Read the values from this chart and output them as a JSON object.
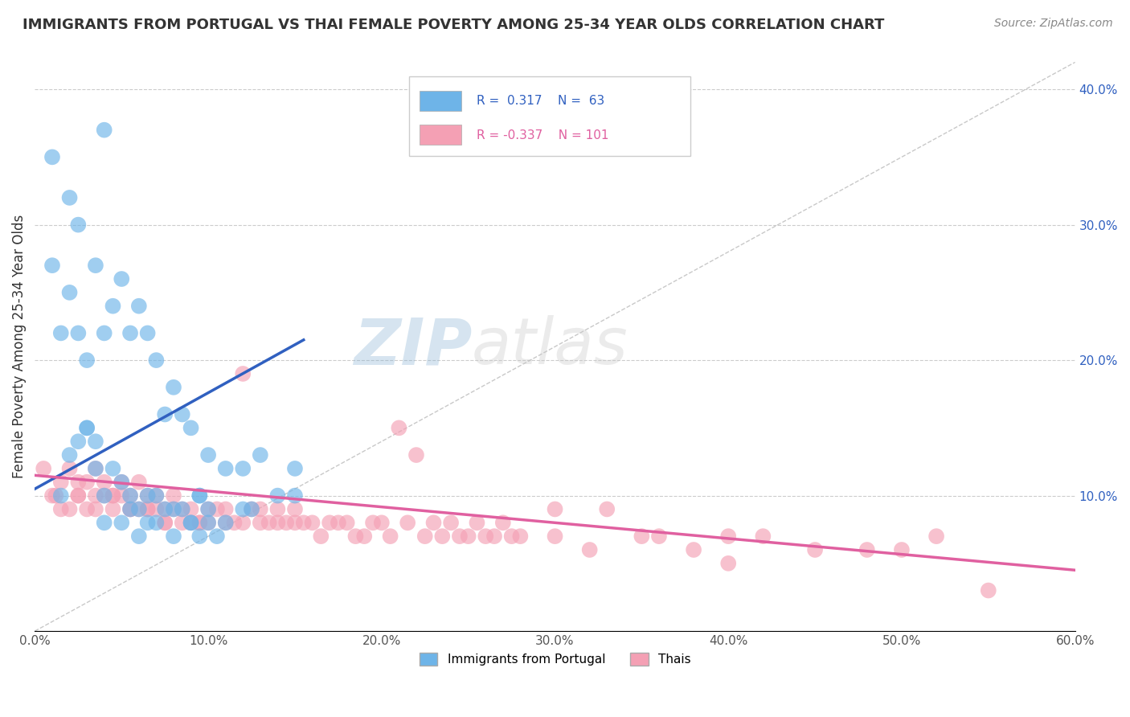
{
  "title": "IMMIGRANTS FROM PORTUGAL VS THAI FEMALE POVERTY AMONG 25-34 YEAR OLDS CORRELATION CHART",
  "source": "Source: ZipAtlas.com",
  "ylabel": "Female Poverty Among 25-34 Year Olds",
  "xlim": [
    0.0,
    0.6
  ],
  "ylim": [
    0.0,
    0.42
  ],
  "xticks": [
    0.0,
    0.1,
    0.2,
    0.3,
    0.4,
    0.5,
    0.6
  ],
  "xticklabels": [
    "0.0%",
    "10.0%",
    "20.0%",
    "30.0%",
    "40.0%",
    "50.0%",
    "60.0%"
  ],
  "yticks": [
    0.0,
    0.1,
    0.2,
    0.3,
    0.4
  ],
  "yticklabels_right": [
    "",
    "10.0%",
    "20.0%",
    "30.0%",
    "40.0%"
  ],
  "blue_R": 0.317,
  "blue_N": 63,
  "pink_R": -0.337,
  "pink_N": 101,
  "blue_color": "#6eb4e8",
  "pink_color": "#f4a0b4",
  "blue_line_color": "#3060c0",
  "pink_line_color": "#e060a0",
  "watermark_zip": "ZIP",
  "watermark_atlas": "atlas",
  "blue_scatter_x": [
    0.01,
    0.02,
    0.01,
    0.015,
    0.025,
    0.03,
    0.02,
    0.04,
    0.03,
    0.025,
    0.035,
    0.05,
    0.045,
    0.04,
    0.055,
    0.06,
    0.065,
    0.07,
    0.075,
    0.08,
    0.085,
    0.09,
    0.1,
    0.11,
    0.12,
    0.13,
    0.14,
    0.15,
    0.15,
    0.035,
    0.04,
    0.05,
    0.055,
    0.06,
    0.065,
    0.07,
    0.08,
    0.09,
    0.095,
    0.1,
    0.11,
    0.12,
    0.125,
    0.03,
    0.025,
    0.02,
    0.015,
    0.04,
    0.05,
    0.06,
    0.07,
    0.08,
    0.09,
    0.095,
    0.1,
    0.105,
    0.035,
    0.045,
    0.055,
    0.065,
    0.075,
    0.085,
    0.095
  ],
  "blue_scatter_y": [
    0.35,
    0.32,
    0.27,
    0.22,
    0.22,
    0.15,
    0.25,
    0.37,
    0.2,
    0.3,
    0.27,
    0.26,
    0.24,
    0.22,
    0.22,
    0.24,
    0.22,
    0.2,
    0.16,
    0.18,
    0.16,
    0.15,
    0.13,
    0.12,
    0.12,
    0.13,
    0.1,
    0.12,
    0.1,
    0.12,
    0.1,
    0.11,
    0.09,
    0.09,
    0.08,
    0.1,
    0.09,
    0.08,
    0.1,
    0.09,
    0.08,
    0.09,
    0.09,
    0.15,
    0.14,
    0.13,
    0.1,
    0.08,
    0.08,
    0.07,
    0.08,
    0.07,
    0.08,
    0.07,
    0.08,
    0.07,
    0.14,
    0.12,
    0.1,
    0.1,
    0.09,
    0.09,
    0.1
  ],
  "pink_scatter_x": [
    0.005,
    0.01,
    0.012,
    0.015,
    0.02,
    0.02,
    0.025,
    0.025,
    0.03,
    0.03,
    0.035,
    0.035,
    0.04,
    0.04,
    0.045,
    0.045,
    0.05,
    0.05,
    0.055,
    0.055,
    0.06,
    0.06,
    0.065,
    0.065,
    0.07,
    0.07,
    0.075,
    0.075,
    0.08,
    0.08,
    0.085,
    0.09,
    0.09,
    0.095,
    0.1,
    0.1,
    0.11,
    0.11,
    0.12,
    0.12,
    0.13,
    0.13,
    0.14,
    0.14,
    0.15,
    0.15,
    0.16,
    0.17,
    0.18,
    0.19,
    0.2,
    0.21,
    0.22,
    0.23,
    0.24,
    0.25,
    0.26,
    0.27,
    0.28,
    0.3,
    0.32,
    0.35,
    0.38,
    0.4,
    0.42,
    0.45,
    0.48,
    0.5,
    0.52,
    0.55,
    0.015,
    0.025,
    0.035,
    0.045,
    0.055,
    0.065,
    0.075,
    0.085,
    0.095,
    0.105,
    0.115,
    0.125,
    0.135,
    0.145,
    0.155,
    0.165,
    0.175,
    0.185,
    0.195,
    0.205,
    0.215,
    0.225,
    0.235,
    0.245,
    0.255,
    0.265,
    0.275,
    0.3,
    0.33,
    0.36,
    0.4
  ],
  "pink_scatter_y": [
    0.12,
    0.1,
    0.1,
    0.09,
    0.09,
    0.12,
    0.1,
    0.11,
    0.09,
    0.11,
    0.1,
    0.12,
    0.1,
    0.11,
    0.1,
    0.09,
    0.1,
    0.11,
    0.09,
    0.1,
    0.09,
    0.11,
    0.09,
    0.1,
    0.09,
    0.1,
    0.09,
    0.08,
    0.09,
    0.1,
    0.09,
    0.08,
    0.09,
    0.08,
    0.09,
    0.08,
    0.08,
    0.09,
    0.08,
    0.19,
    0.08,
    0.09,
    0.08,
    0.09,
    0.08,
    0.09,
    0.08,
    0.08,
    0.08,
    0.07,
    0.08,
    0.15,
    0.13,
    0.08,
    0.08,
    0.07,
    0.07,
    0.08,
    0.07,
    0.07,
    0.06,
    0.07,
    0.06,
    0.07,
    0.07,
    0.06,
    0.06,
    0.06,
    0.07,
    0.03,
    0.11,
    0.1,
    0.09,
    0.1,
    0.09,
    0.09,
    0.08,
    0.08,
    0.08,
    0.09,
    0.08,
    0.09,
    0.08,
    0.08,
    0.08,
    0.07,
    0.08,
    0.07,
    0.08,
    0.07,
    0.08,
    0.07,
    0.07,
    0.07,
    0.08,
    0.07,
    0.07,
    0.09,
    0.09,
    0.07,
    0.05
  ],
  "blue_trend_x": [
    0.0,
    0.155
  ],
  "blue_trend_y": [
    0.105,
    0.215
  ],
  "pink_trend_x": [
    0.0,
    0.6
  ],
  "pink_trend_y": [
    0.115,
    0.045
  ],
  "diag_line_x": [
    0.0,
    0.6
  ],
  "diag_line_y": [
    0.0,
    0.42
  ]
}
